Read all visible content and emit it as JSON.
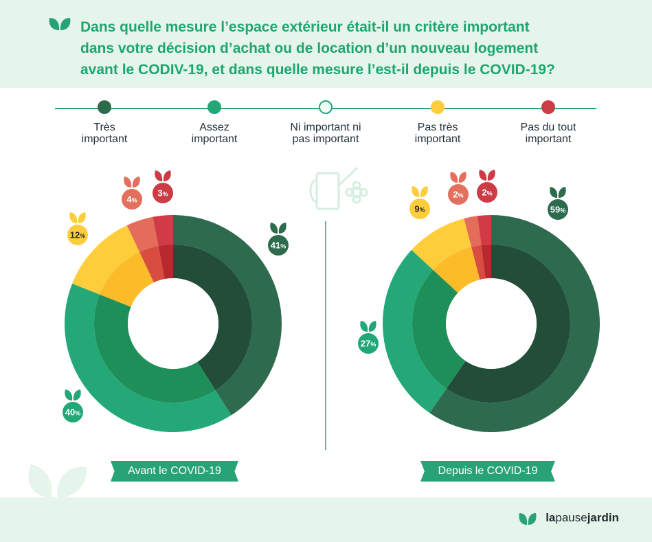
{
  "title_lines": [
    "Dans quelle mesure l’espace extérieur était-il un critère important",
    "dans votre décision d’achat ou de location d’un nouveau logement",
    "avant le CODIV-19,  et dans quelle mesure l’est-il depuis le COVID-19?"
  ],
  "legend": [
    {
      "lines": [
        "Très",
        "important"
      ],
      "color": "#2d6b4d",
      "style": "filled"
    },
    {
      "lines": [
        "Assez",
        "important"
      ],
      "color": "#22a777",
      "style": "filled"
    },
    {
      "lines": [
        "Ni important ni",
        "pas important"
      ],
      "color": "#22a777",
      "style": "outline"
    },
    {
      "lines": [
        "Pas très",
        "important"
      ],
      "color": "#fecd3b",
      "style": "filled"
    },
    {
      "lines": [
        "Pas du tout",
        "important"
      ],
      "color": "#cd3b44",
      "style": "filled"
    }
  ],
  "chart_data": [
    {
      "type": "pie",
      "title": "Avant le COVID-19",
      "categories": [
        "Très important",
        "Assez important",
        "Pas très important",
        "Pas du tout important (4%)",
        "Pas du tout important (3%)"
      ],
      "values": [
        41,
        40,
        12,
        4,
        3
      ],
      "labels": [
        "41",
        "40",
        "12",
        "4",
        "3"
      ],
      "colors_outer": [
        "#2e6a4d",
        "#24a878",
        "#fecd3b",
        "#e46c5a",
        "#d03b45"
      ],
      "colors_inner": [
        "#224d39",
        "#1e8f59",
        "#fcbc29",
        "#d84d3f",
        "#b8282f"
      ],
      "label_colors": [
        "#2d6b4d",
        "#22a777",
        "#fecd3b",
        "#e36f5c",
        "#cd3b44"
      ],
      "label_text_colors": [
        "#ffffff",
        "#ffffff",
        "#2b2b2b",
        "#ffffff",
        "#ffffff"
      ]
    },
    {
      "type": "pie",
      "title": "Depuis le COVID-19",
      "categories": [
        "Très important",
        "Assez important",
        "Pas très important",
        "Pas du tout important (2%)",
        "Pas du tout important (2%)"
      ],
      "values": [
        59,
        27,
        9,
        2,
        2
      ],
      "labels": [
        "59",
        "27",
        "9",
        "2",
        "2"
      ],
      "colors_outer": [
        "#2e6a4d",
        "#24a878",
        "#fecd3b",
        "#e46c5a",
        "#d03b45"
      ],
      "colors_inner": [
        "#224d39",
        "#1e8f59",
        "#fcbc29",
        "#d84d3f",
        "#b8282f"
      ],
      "label_colors": [
        "#2d6b4d",
        "#22a777",
        "#fecd3b",
        "#e36f5c",
        "#cd3b44"
      ],
      "label_text_colors": [
        "#ffffff",
        "#ffffff",
        "#2b2b2b",
        "#ffffff",
        "#ffffff"
      ]
    }
  ],
  "percent_sign": "%",
  "brand": {
    "part1": "la",
    "part2": "pause",
    "part3": "jardin"
  },
  "colors": {
    "accent": "#27a376",
    "header_bg": "#e6f5eb"
  }
}
